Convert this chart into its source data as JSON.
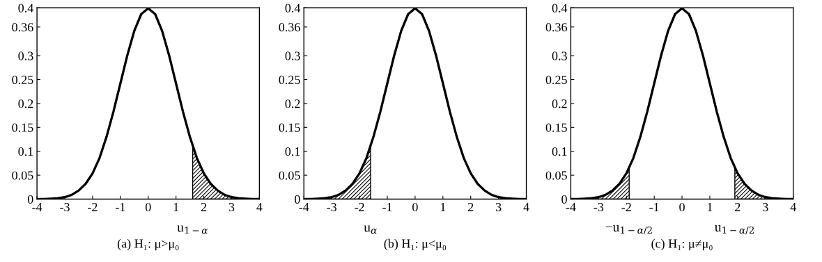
{
  "chart_data": [
    {
      "type": "line",
      "xlabel": "(a) H₁: μ>μ₀",
      "x": [
        -4,
        -3.75,
        -3.5,
        -3.25,
        -3,
        -2.75,
        -2.5,
        -2.25,
        -2,
        -1.75,
        -1.5,
        -1.25,
        -1,
        -0.75,
        -0.5,
        -0.25,
        0,
        0.25,
        0.5,
        0.75,
        1,
        1.25,
        1.5,
        1.75,
        2,
        2.25,
        2.5,
        2.75,
        3,
        3.25,
        3.5,
        3.75,
        4
      ],
      "series": [
        {
          "color": "#000000",
          "values": [
            0,
            0,
            0.001,
            0.002,
            0.004,
            0.009,
            0.018,
            0.032,
            0.054,
            0.086,
            0.13,
            0.183,
            0.242,
            0.301,
            0.352,
            0.387,
            0.399,
            0.387,
            0.352,
            0.301,
            0.242,
            0.183,
            0.13,
            0.086,
            0.054,
            0.032,
            0.018,
            0.009,
            0.004,
            0.002,
            0.001,
            0,
            0
          ]
        },
        {
          "type": "area",
          "color": "#000000",
          "x": [
            1.6,
            1.75,
            2,
            2.25,
            2.5,
            2.75,
            3,
            3.25,
            3.5,
            3.75,
            4
          ],
          "values": [
            0.111,
            0.086,
            0.054,
            0.032,
            0.018,
            0.009,
            0.004,
            0.002,
            0.001,
            0,
            0
          ]
        }
      ],
      "annotations": [
        {
          "text": "u$_{1−α}$",
          "x": 1.6,
          "y": 0
        }
      ],
      "xlim": [
        -4,
        4
      ],
      "xticks": [
        -4,
        -3,
        -2,
        -1,
        0,
        1,
        2,
        3,
        4
      ],
      "ylim": [
        0,
        0.4
      ],
      "yticks": [
        0,
        0.05,
        0.1,
        0.15,
        0.2,
        0.25,
        0.3,
        0.36,
        0.4
      ],
      "grid": false
    },
    {
      "type": "line",
      "xlabel": "(b) H₁: μ<μ₀",
      "x": [
        -4,
        -3.75,
        -3.5,
        -3.25,
        -3,
        -2.75,
        -2.5,
        -2.25,
        -2,
        -1.75,
        -1.5,
        -1.25,
        -1,
        -0.75,
        -0.5,
        -0.25,
        0,
        0.25,
        0.5,
        0.75,
        1,
        1.25,
        1.5,
        1.75,
        2,
        2.25,
        2.5,
        2.75,
        3,
        3.25,
        3.5,
        3.75,
        4
      ],
      "series": [
        {
          "color": "#000000",
          "values": [
            0,
            0,
            0.001,
            0.002,
            0.004,
            0.009,
            0.018,
            0.032,
            0.054,
            0.086,
            0.13,
            0.183,
            0.242,
            0.301,
            0.352,
            0.387,
            0.399,
            0.387,
            0.352,
            0.301,
            0.242,
            0.183,
            0.13,
            0.086,
            0.054,
            0.032,
            0.018,
            0.009,
            0.004,
            0.002,
            0.001,
            0,
            0
          ]
        },
        {
          "type": "area",
          "color": "#000000",
          "x": [
            -4,
            -3.75,
            -3.5,
            -3.25,
            -3,
            -2.75,
            -2.5,
            -2.25,
            -2,
            -1.75,
            -1.6
          ],
          "values": [
            0,
            0,
            0.001,
            0.002,
            0.004,
            0.009,
            0.018,
            0.032,
            0.054,
            0.086,
            0.111
          ]
        }
      ],
      "annotations": [
        {
          "text": "u$_{α}$",
          "x": -1.6,
          "y": 0
        }
      ],
      "xlim": [
        -4,
        4
      ],
      "xticks": [
        -4,
        -3,
        -2,
        -1,
        0,
        1,
        2,
        3,
        4
      ],
      "ylim": [
        0,
        0.4
      ],
      "yticks": [
        0,
        0.05,
        0.1,
        0.15,
        0.2,
        0.25,
        0.3,
        0.36,
        0.4
      ],
      "grid": false
    },
    {
      "type": "line",
      "xlabel": "(c) H₁: μ≠μ₀",
      "x": [
        -4,
        -3.75,
        -3.5,
        -3.25,
        -3,
        -2.75,
        -2.5,
        -2.25,
        -2,
        -1.75,
        -1.5,
        -1.25,
        -1,
        -0.75,
        -0.5,
        -0.25,
        0,
        0.25,
        0.5,
        0.75,
        1,
        1.25,
        1.5,
        1.75,
        2,
        2.25,
        2.5,
        2.75,
        3,
        3.25,
        3.5,
        3.75,
        4
      ],
      "series": [
        {
          "color": "#000000",
          "values": [
            0,
            0,
            0.001,
            0.002,
            0.004,
            0.009,
            0.018,
            0.032,
            0.054,
            0.086,
            0.13,
            0.183,
            0.242,
            0.301,
            0.352,
            0.387,
            0.399,
            0.387,
            0.352,
            0.301,
            0.242,
            0.183,
            0.13,
            0.086,
            0.054,
            0.032,
            0.018,
            0.009,
            0.004,
            0.002,
            0.001,
            0,
            0
          ]
        },
        {
          "type": "area",
          "color": "#000000",
          "x": [
            -4,
            -3.75,
            -3.5,
            -3.25,
            -3,
            -2.75,
            -2.5,
            -2.25,
            -2,
            -1.9
          ],
          "values": [
            0,
            0,
            0.001,
            0.002,
            0.004,
            0.009,
            0.018,
            0.032,
            0.054,
            0.066
          ]
        },
        {
          "type": "area",
          "color": "#000000",
          "x": [
            1.9,
            2,
            2.25,
            2.5,
            2.75,
            3,
            3.25,
            3.5,
            3.75,
            4
          ],
          "values": [
            0.066,
            0.054,
            0.032,
            0.018,
            0.009,
            0.004,
            0.002,
            0.001,
            0,
            0
          ]
        }
      ],
      "annotations": [
        {
          "text": "−u$_{1−α/2}$",
          "x": -1.9,
          "y": 0
        },
        {
          "text": "u$_{1−α/2}$",
          "x": 1.9,
          "y": 0
        }
      ],
      "xlim": [
        -4,
        4
      ],
      "xticks": [
        -4,
        -3,
        -2,
        -1,
        0,
        1,
        2,
        3,
        4
      ],
      "ylim": [
        0,
        0.4
      ],
      "yticks": [
        0,
        0.05,
        0.1,
        0.15,
        0.2,
        0.25,
        0.3,
        0.36,
        0.4
      ],
      "grid": false
    }
  ]
}
